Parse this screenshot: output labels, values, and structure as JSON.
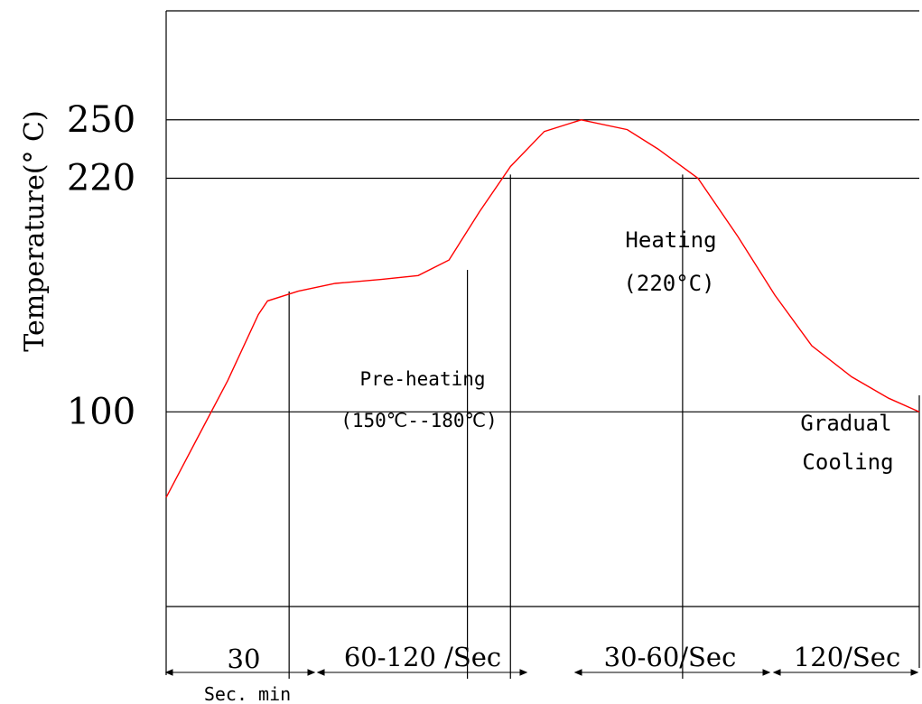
{
  "chart_data": {
    "type": "line",
    "ylabel": "Temperature(° C)",
    "y_ticks": [
      "250",
      "220",
      "100"
    ],
    "tick_values": [
      250,
      220,
      100
    ],
    "series": [
      {
        "color": "#ff0000",
        "points": [
          [
            0,
            56
          ],
          [
            1,
            86
          ],
          [
            2,
            116
          ],
          [
            3,
            150
          ],
          [
            3.3,
            157
          ],
          [
            4.3,
            162
          ],
          [
            5.5,
            166
          ],
          [
            7,
            168
          ],
          [
            8.2,
            170
          ],
          [
            9.2,
            178
          ],
          [
            10.2,
            203
          ],
          [
            11.2,
            226
          ],
          [
            12.3,
            244
          ],
          [
            13.5,
            250
          ],
          [
            15,
            245
          ],
          [
            16,
            235
          ],
          [
            17.3,
            220
          ],
          [
            18.6,
            190
          ],
          [
            19.8,
            160
          ],
          [
            21,
            134
          ],
          [
            22.3,
            118
          ],
          [
            23.5,
            107
          ],
          [
            24.5,
            100
          ]
        ]
      }
    ],
    "xlim": [
      0,
      24.5
    ],
    "ylim": [
      0,
      306
    ],
    "zones": [
      {
        "label_lines": [],
        "duration": "30",
        "unit": "Sec. min"
      },
      {
        "label_lines": [
          "Pre-heating",
          "(150℃--180℃)"
        ],
        "duration": "60-120 /Sec"
      },
      {
        "label_lines": [
          "Heating",
          "(220°C)"
        ],
        "duration": "30-60/Sec"
      },
      {
        "label_lines": [
          "Gradual",
          "Cooling"
        ],
        "duration": "120/Sec"
      }
    ],
    "zone_boundaries": [
      4,
      9.8,
      11.2,
      16.8
    ],
    "color": "#000000",
    "grid": "horizontal at 100, 220, 250"
  }
}
